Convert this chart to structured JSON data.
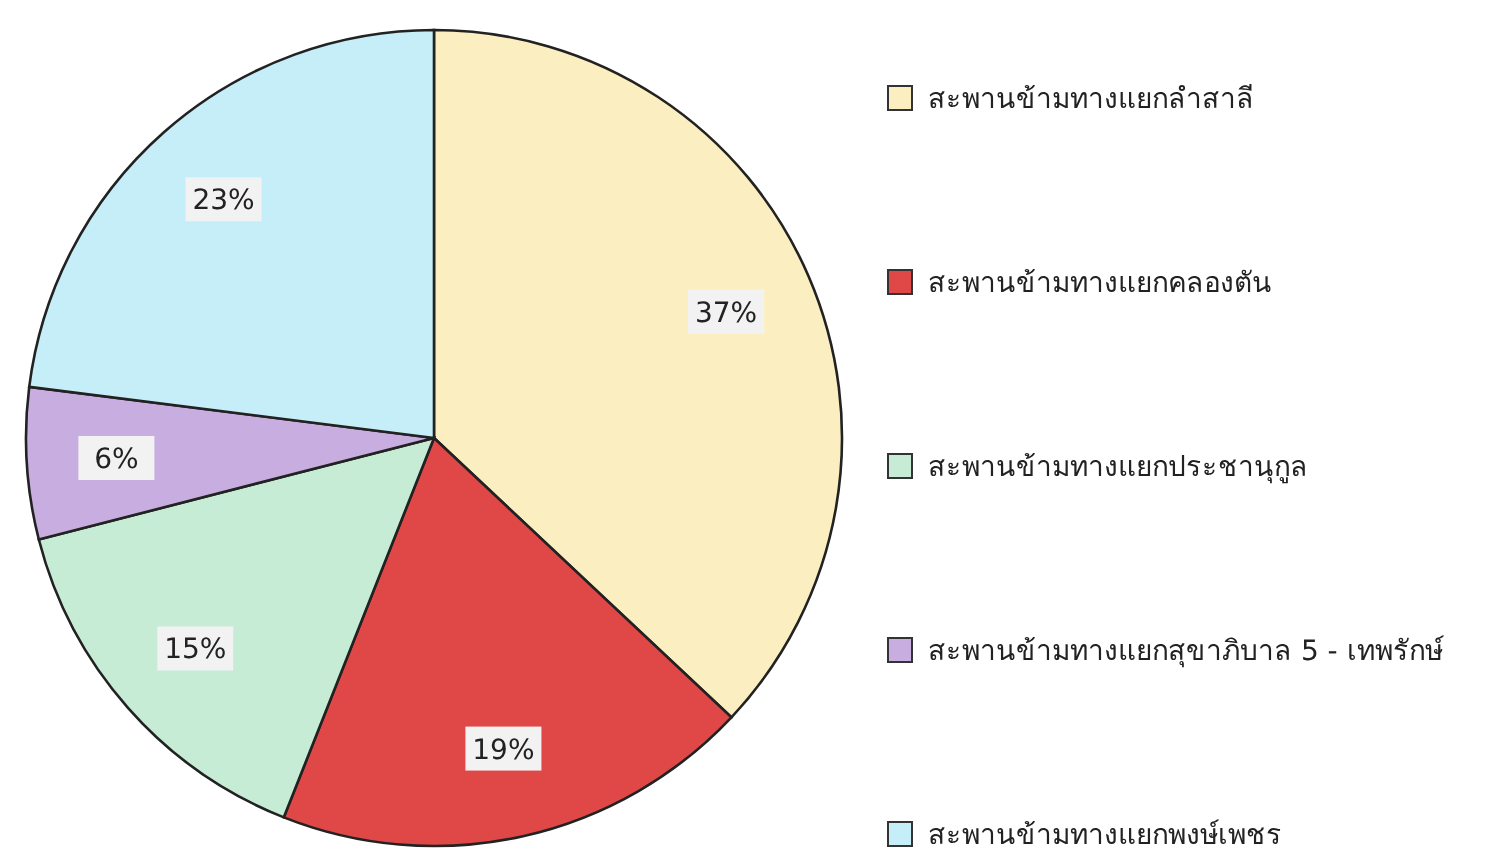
{
  "chart_data": {
    "type": "pie",
    "categories": [
      "สะพานข้ามทางแยกลำสาลี",
      "สะพานข้ามทางแยกคลองตัน",
      "สะพานข้ามทางแยกประชานุกูล",
      "สะพานข้ามทางแยกสุขาภิบาล 5 - เทพรักษ์",
      "สะพานข้ามทางแยกพงษ์เพชร"
    ],
    "values": [
      37,
      19,
      15,
      6,
      23
    ],
    "colors": [
      "#fbefc2",
      "#e04848",
      "#c6ecd6",
      "#c8aee0",
      "#c6eef8"
    ],
    "value_labels": [
      "37%",
      "19%",
      "15%",
      "6%",
      "23%"
    ],
    "legend": "right"
  }
}
